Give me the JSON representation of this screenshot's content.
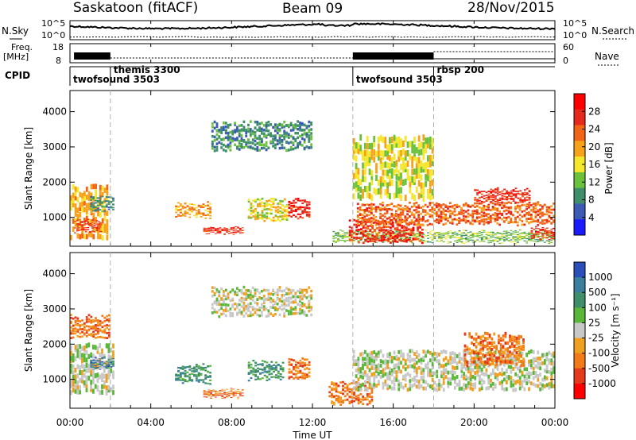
{
  "header": {
    "station": "Saskatoon (fitACF)",
    "beam": "Beam 09",
    "date": "28/Nov/2015"
  },
  "top_panels": {
    "nsky_label": "N.Sky",
    "nsky_ticks": [
      "10^5",
      "10^0"
    ],
    "nsearch_label": "N.Search",
    "nsearch_ticks": [
      "10^5",
      "10^0"
    ],
    "freq_label": "Freq.",
    "freq_unit": "[MHz]",
    "freq_ticks": [
      "18",
      "8"
    ],
    "nave_label": "Nave",
    "nave_ticks": [
      "60",
      "0"
    ],
    "cpid_label": "CPID"
  },
  "cpid_entries": [
    {
      "label": "twofsound 3503",
      "start_hour": 0
    },
    {
      "label": "themis 3300",
      "start_hour": 2
    },
    {
      "label": "twofsound 3503",
      "start_hour": 14
    },
    {
      "label": "rbsp 200",
      "start_hour": 18
    }
  ],
  "x_axis": {
    "ticks": [
      "00:00",
      "04:00",
      "08:00",
      "12:00",
      "16:00",
      "20:00",
      "00:00"
    ],
    "title": "Time UT"
  },
  "power_panel": {
    "ylabel": "Slant Range [km]",
    "yticks": [
      "4000",
      "3000",
      "2000",
      "1000"
    ],
    "colorbar_title": "Power [dB]",
    "colorbar_ticks": [
      "28",
      "24",
      "20",
      "16",
      "12",
      "8",
      "4"
    ]
  },
  "velocity_panel": {
    "ylabel": "Slant Range [km]",
    "yticks": [
      "4000",
      "3000",
      "2000",
      "1000"
    ],
    "colorbar_title": "Velocity [m s⁻¹]",
    "colorbar_ticks": [
      "1000",
      "500",
      "100",
      "25",
      "-25",
      "-100",
      "-500",
      "-1000"
    ]
  },
  "chart_data": [
    {
      "type": "heatmap",
      "title": "Power",
      "xlabel": "Time UT",
      "ylabel": "Slant Range [km]",
      "xlim_hours": [
        0,
        24
      ],
      "ylim_km": [
        180,
        4600
      ],
      "colorbar": {
        "label": "Power [dB]",
        "range": [
          0,
          30
        ],
        "ticks": [
          4,
          8,
          12,
          16,
          20,
          24,
          28
        ]
      },
      "colors": [
        "#1a1aff",
        "#3b5bb5",
        "#3f8f6a",
        "#6cc23c",
        "#f5e62e",
        "#f7a21b",
        "#f26416",
        "#e52a1b",
        "#ff0000"
      ],
      "regions": [
        {
          "t": [
            0.0,
            1.9
          ],
          "r": [
            400,
            1900
          ],
          "db": 18
        },
        {
          "t": [
            0.2,
            1.6
          ],
          "r": [
            600,
            900
          ],
          "db": 26
        },
        {
          "t": [
            1.0,
            2.2
          ],
          "r": [
            1200,
            1600
          ],
          "db": 8
        },
        {
          "t": [
            5.2,
            7.0
          ],
          "r": [
            1000,
            1400
          ],
          "db": 18
        },
        {
          "t": [
            6.6,
            8.6
          ],
          "r": [
            550,
            700
          ],
          "db": 28
        },
        {
          "t": [
            8.8,
            10.8
          ],
          "r": [
            900,
            1500
          ],
          "db": 16
        },
        {
          "t": [
            10.8,
            11.9
          ],
          "r": [
            1000,
            1500
          ],
          "db": 26
        },
        {
          "t": [
            13.0,
            24.0
          ],
          "r": [
            300,
            600
          ],
          "db": 10
        },
        {
          "t": [
            13.8,
            17.5
          ],
          "r": [
            300,
            900
          ],
          "db": 28
        },
        {
          "t": [
            14.2,
            24.0
          ],
          "r": [
            800,
            1400
          ],
          "db": 24
        },
        {
          "t": [
            14.0,
            18.0
          ],
          "r": [
            1500,
            3300
          ],
          "db": 14
        },
        {
          "t": [
            20.0,
            22.8
          ],
          "r": [
            1400,
            1800
          ],
          "db": 26
        },
        {
          "t": [
            22.8,
            24.0
          ],
          "r": [
            400,
            700
          ],
          "db": 26
        },
        {
          "t": [
            7.0,
            12.0
          ],
          "r": [
            2900,
            3700
          ],
          "db": 8
        }
      ]
    },
    {
      "type": "heatmap",
      "title": "Velocity",
      "xlabel": "Time UT",
      "ylabel": "Slant Range [km]",
      "xlim_hours": [
        0,
        24
      ],
      "ylim_km": [
        180,
        4600
      ],
      "colorbar": {
        "label": "Velocity [m s⁻¹]",
        "range": [
          -1000,
          1000
        ],
        "ticks": [
          1000,
          500,
          100,
          25,
          -25,
          -100,
          -500,
          -1000
        ]
      },
      "colors": [
        "#2a4fb8",
        "#3b7f9f",
        "#3f8f6a",
        "#59b83a",
        "#c8c8c8",
        "#f0a020",
        "#f27a18",
        "#e53a1a",
        "#ff0000"
      ],
      "regions": [
        {
          "t": [
            0.0,
            2.2
          ],
          "r": [
            600,
            2000
          ],
          "v": 0
        },
        {
          "t": [
            0.0,
            2.0
          ],
          "r": [
            2200,
            2800
          ],
          "v": -200
        },
        {
          "t": [
            1.0,
            2.2
          ],
          "r": [
            1300,
            1600
          ],
          "v": 300
        },
        {
          "t": [
            5.2,
            7.0
          ],
          "r": [
            900,
            1400
          ],
          "v": 200
        },
        {
          "t": [
            6.6,
            8.6
          ],
          "r": [
            500,
            700
          ],
          "v": -100
        },
        {
          "t": [
            8.8,
            10.6
          ],
          "r": [
            1000,
            1500
          ],
          "v": 100
        },
        {
          "t": [
            10.8,
            11.9
          ],
          "r": [
            1000,
            1600
          ],
          "v": -300
        },
        {
          "t": [
            12.8,
            15.0
          ],
          "r": [
            300,
            900
          ],
          "v": -100
        },
        {
          "t": [
            14.0,
            24.0
          ],
          "r": [
            700,
            1800
          ],
          "v": 0
        },
        {
          "t": [
            19.5,
            22.5
          ],
          "r": [
            1400,
            2300
          ],
          "v": -300
        },
        {
          "t": [
            7.0,
            12.0
          ],
          "r": [
            2800,
            3600
          ],
          "v": 0
        }
      ]
    }
  ]
}
